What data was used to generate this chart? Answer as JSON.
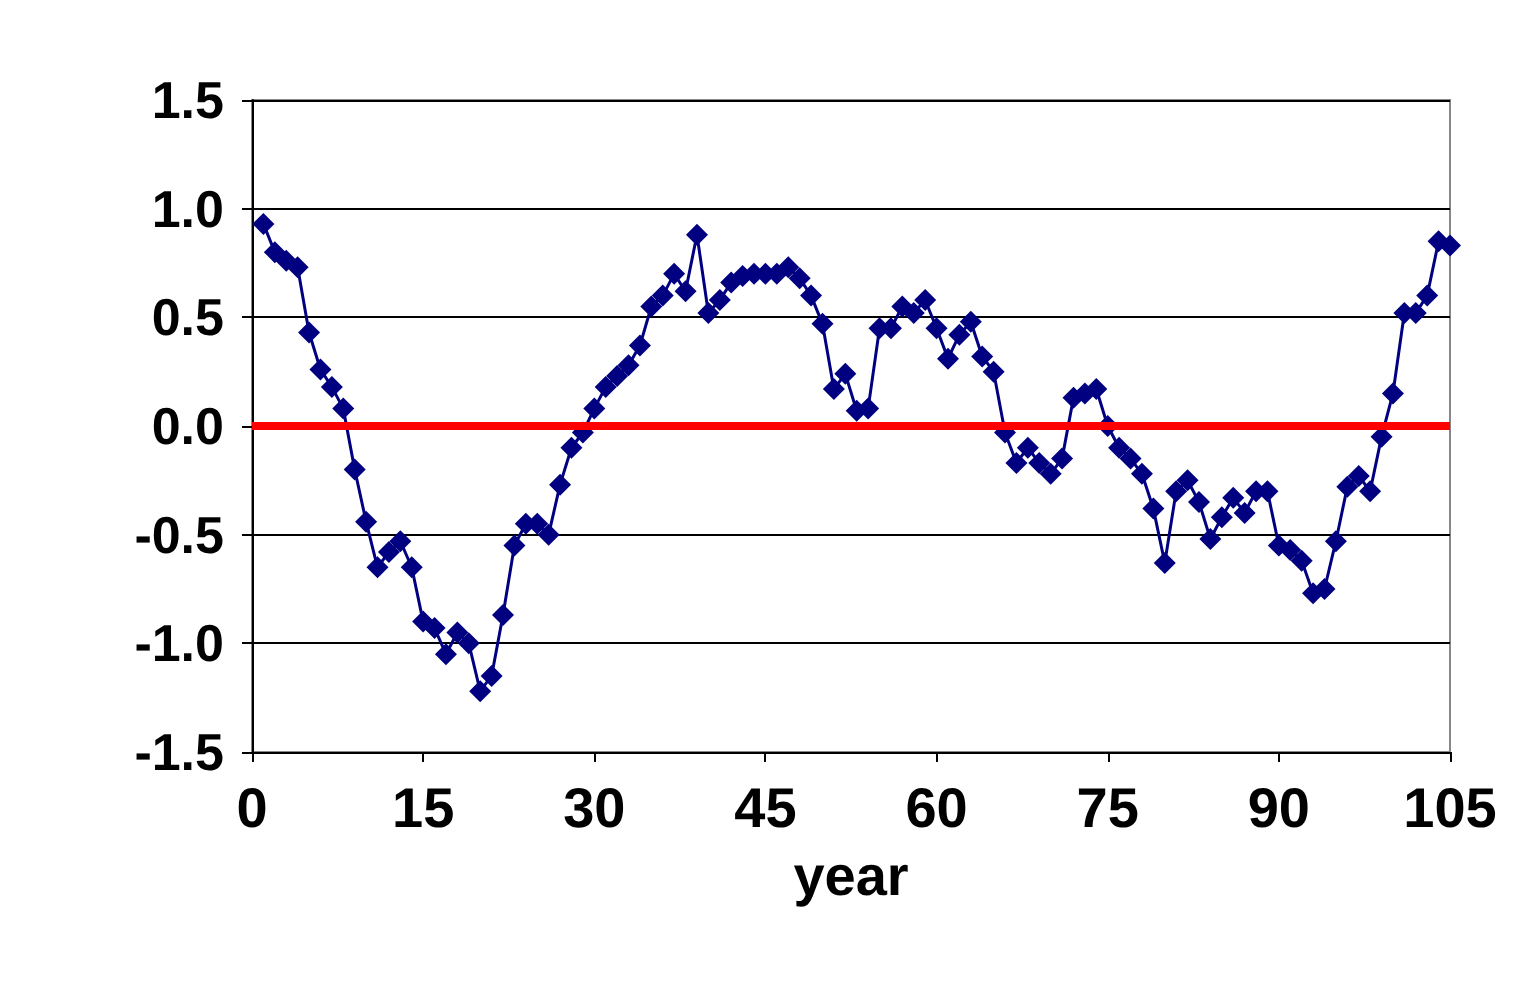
{
  "chart_data": {
    "type": "line",
    "xlabel": "year",
    "xlim": [
      0,
      105
    ],
    "xticks": [
      0,
      15,
      30,
      45,
      60,
      75,
      90,
      105
    ],
    "ylim": [
      -1.5,
      1.5
    ],
    "yticks": [
      {
        "value": -1.5,
        "label": "-1.5"
      },
      {
        "value": -1,
        "label": "-1.0"
      },
      {
        "value": -0.5,
        "label": "-0.5"
      },
      {
        "value": 0,
        "label": "0.0"
      },
      {
        "value": 0.5,
        "label": "0.5"
      },
      {
        "value": 1,
        "label": "1.0"
      },
      {
        "value": 1.5,
        "label": "1.5"
      }
    ],
    "grid": "y",
    "marker": "diamond",
    "line_style": "solid",
    "ref_lines": [
      {
        "axis": "y",
        "value": 0,
        "label": null,
        "color": "#ff0000",
        "line_style": "solid"
      }
    ],
    "x": [
      1,
      2,
      3,
      4,
      5,
      6,
      7,
      8,
      9,
      10,
      11,
      12,
      13,
      14,
      15,
      16,
      17,
      18,
      19,
      20,
      21,
      22,
      23,
      24,
      25,
      26,
      27,
      28,
      29,
      30,
      31,
      32,
      33,
      34,
      35,
      36,
      37,
      38,
      39,
      40,
      41,
      42,
      43,
      44,
      45,
      46,
      47,
      48,
      49,
      50,
      51,
      52,
      53,
      54,
      55,
      56,
      57,
      58,
      59,
      60,
      61,
      62,
      63,
      64,
      65,
      66,
      67,
      68,
      69,
      70,
      71,
      72,
      73,
      74,
      75,
      76,
      77,
      78,
      79,
      80,
      81,
      82,
      83,
      84,
      85,
      86,
      87,
      88,
      89,
      90,
      91,
      92,
      93,
      94,
      95,
      96,
      97,
      98,
      99,
      100,
      101,
      102,
      103,
      104,
      105
    ],
    "series": [
      {
        "color": "#000080",
        "values": [
          0.93,
          0.8,
          0.76,
          0.73,
          0.43,
          0.26,
          0.18,
          0.08,
          -0.2,
          -0.44,
          -0.65,
          -0.58,
          -0.53,
          -0.65,
          -0.9,
          -0.93,
          -1.05,
          -0.95,
          -1.0,
          -1.22,
          -1.15,
          -0.87,
          -0.55,
          -0.45,
          -0.45,
          -0.5,
          -0.27,
          -0.1,
          -0.03,
          0.08,
          0.18,
          0.23,
          0.28,
          0.37,
          0.55,
          0.6,
          0.7,
          0.62,
          0.88,
          0.52,
          0.58,
          0.66,
          0.69,
          0.7,
          0.7,
          0.7,
          0.73,
          0.68,
          0.6,
          0.47,
          0.17,
          0.24,
          0.07,
          0.08,
          0.45,
          0.45,
          0.55,
          0.52,
          0.58,
          0.45,
          0.31,
          0.42,
          0.48,
          0.32,
          0.25,
          -0.03,
          -0.17,
          -0.1,
          -0.17,
          -0.22,
          -0.15,
          0.13,
          0.15,
          0.17,
          0.0,
          -0.1,
          -0.15,
          -0.22,
          -0.38,
          -0.63,
          -0.3,
          -0.25,
          -0.35,
          -0.52,
          -0.42,
          -0.33,
          -0.4,
          -0.3,
          -0.3,
          -0.55,
          -0.57,
          -0.62,
          -0.77,
          -0.75,
          -0.53,
          -0.28,
          -0.23,
          -0.3,
          -0.05,
          0.15,
          0.52,
          0.52,
          0.6,
          0.85,
          0.83
        ]
      }
    ]
  }
}
